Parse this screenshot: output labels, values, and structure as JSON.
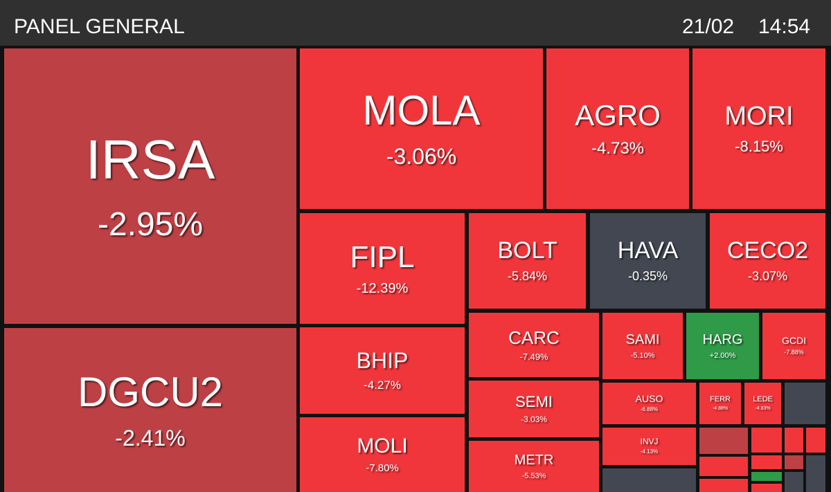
{
  "header": {
    "title": "PANEL GENERAL",
    "date": "21/02",
    "time": "14:54"
  },
  "tiles": [
    {
      "ticker": "IRSA",
      "change": "-2.95%",
      "color": "#bd4045"
    },
    {
      "ticker": "DGCU2",
      "change": "-2.41%",
      "color": "#bd4045"
    },
    {
      "ticker": "MOLA",
      "change": "-3.06%",
      "color": "#f1363b"
    },
    {
      "ticker": "AGRO",
      "change": "-4.73%",
      "color": "#f1363b"
    },
    {
      "ticker": "MORI",
      "change": "-8.15%",
      "color": "#f1363b"
    },
    {
      "ticker": "FIPL",
      "change": "-12.39%",
      "color": "#f1363b"
    },
    {
      "ticker": "BOLT",
      "change": "-5.84%",
      "color": "#f1363b"
    },
    {
      "ticker": "HAVA",
      "change": "-0.35%",
      "color": "#434752"
    },
    {
      "ticker": "CECO2",
      "change": "-3.07%",
      "color": "#f1363b"
    },
    {
      "ticker": "BHIP",
      "change": "-4.27%",
      "color": "#f1363b"
    },
    {
      "ticker": "MOLI",
      "change": "-7.80%",
      "color": "#f1363b"
    },
    {
      "ticker": "CARC",
      "change": "-7.49%",
      "color": "#f1363b"
    },
    {
      "ticker": "SEMI",
      "change": "-3.03%",
      "color": "#f1363b"
    },
    {
      "ticker": "METR",
      "change": "-5.53%",
      "color": "#f1363b"
    },
    {
      "ticker": "SAMI",
      "change": "-5.10%",
      "color": "#f1363b"
    },
    {
      "ticker": "HARG",
      "change": "+2.00%",
      "color": "#2f9a48"
    },
    {
      "ticker": "GCDI",
      "change": "-7.88%",
      "color": "#f1363b"
    },
    {
      "ticker": "AUSO",
      "change": "-6.88%",
      "color": "#f1363b"
    },
    {
      "ticker": "INVJ",
      "change": "-4.13%",
      "color": "#f1363b"
    },
    {
      "ticker": "FERR",
      "change": "-4.88%",
      "color": "#f1363b"
    },
    {
      "ticker": "LEDE",
      "change": "-4.83%",
      "color": "#f1363b"
    }
  ]
}
